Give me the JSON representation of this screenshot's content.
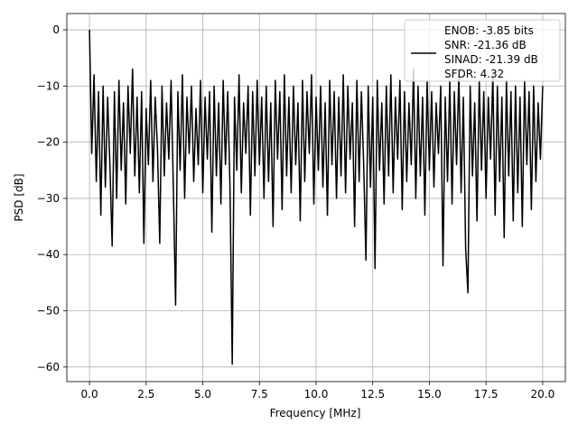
{
  "chart_data": {
    "type": "line",
    "xlabel": "Frequency [MHz]",
    "ylabel": "PSD [dB]",
    "xlim": [
      -1.0,
      21.0
    ],
    "ylim": [
      -62.6,
      2.9
    ],
    "xticks": [
      {
        "value": 0,
        "label": "0.0"
      },
      2.5,
      {
        "value": 5,
        "label": "5.0"
      },
      7.5,
      {
        "value": 10,
        "label": "10.0"
      },
      12.5,
      {
        "value": 15,
        "label": "15.0"
      },
      17.5,
      {
        "value": 20,
        "label": "20.0"
      }
    ],
    "yticks": [
      {
        "value": -60,
        "label": "−60"
      },
      {
        "value": -50,
        "label": "−50"
      },
      {
        "value": -40,
        "label": "−40"
      },
      {
        "value": -30,
        "label": "−30"
      },
      {
        "value": -20,
        "label": "−20"
      },
      {
        "value": -10,
        "label": "−10"
      },
      0
    ],
    "grid": true,
    "legend": "upper right",
    "x": [
      0,
      0.1,
      0.2,
      0.3,
      0.4,
      0.5,
      0.6,
      0.7,
      0.8,
      0.9,
      1,
      1.1,
      1.2,
      1.3,
      1.4,
      1.5,
      1.6,
      1.7,
      1.8,
      1.9,
      2,
      2.1,
      2.2,
      2.3,
      2.4,
      2.5,
      2.6,
      2.7,
      2.8,
      2.9,
      3,
      3.1,
      3.2,
      3.3,
      3.4,
      3.5,
      3.6,
      3.7,
      3.8,
      3.9,
      4,
      4.1,
      4.2,
      4.3,
      4.4,
      4.5,
      4.6,
      4.7,
      4.8,
      4.9,
      5,
      5.1,
      5.2,
      5.3,
      5.4,
      5.5,
      5.6,
      5.7,
      5.8,
      5.9,
      6,
      6.1,
      6.2,
      6.3,
      6.4,
      6.5,
      6.6,
      6.7,
      6.8,
      6.9,
      7,
      7.1,
      7.2,
      7.3,
      7.4,
      7.5,
      7.6,
      7.7,
      7.8,
      7.9,
      8,
      8.1,
      8.2,
      8.3,
      8.4,
      8.5,
      8.6,
      8.7,
      8.8,
      8.9,
      9,
      9.1,
      9.2,
      9.3,
      9.4,
      9.5,
      9.6,
      9.7,
      9.8,
      9.9,
      10,
      10.1,
      10.2,
      10.3,
      10.4,
      10.5,
      10.6,
      10.7,
      10.8,
      10.9,
      11,
      11.1,
      11.2,
      11.3,
      11.4,
      11.5,
      11.6,
      11.7,
      11.8,
      11.9,
      12,
      12.1,
      12.2,
      12.3,
      12.4,
      12.5,
      12.6,
      12.7,
      12.8,
      12.9,
      13,
      13.1,
      13.2,
      13.3,
      13.4,
      13.5,
      13.6,
      13.7,
      13.8,
      13.9,
      14,
      14.1,
      14.2,
      14.3,
      14.4,
      14.5,
      14.6,
      14.7,
      14.8,
      14.9,
      15,
      15.1,
      15.2,
      15.3,
      15.4,
      15.5,
      15.6,
      15.7,
      15.8,
      15.9,
      16,
      16.1,
      16.2,
      16.3,
      16.4,
      16.5,
      16.6,
      16.7,
      16.8,
      16.9,
      17,
      17.1,
      17.2,
      17.3,
      17.4,
      17.5,
      17.6,
      17.7,
      17.8,
      17.9,
      18,
      18.1,
      18.2,
      18.3,
      18.4,
      18.5,
      18.6,
      18.7,
      18.8,
      18.9,
      19,
      19.1,
      19.2,
      19.3,
      19.4,
      19.5,
      19.6,
      19.7,
      19.8,
      19.9,
      20
    ],
    "series": [
      {
        "name": "ENOB: -3.85 bits\nSNR: -21.36 dB\nSINAD: -21.39 dB\nSFDR: 4.32",
        "color": "#000000",
        "values": [
          0,
          -22,
          -8,
          -27,
          -11,
          -33,
          -10,
          -28,
          -12,
          -24,
          -38.5,
          -11,
          -30,
          -9,
          -25,
          -13,
          -31,
          -10,
          -22,
          -7,
          -26,
          -12,
          -29,
          -11,
          -38,
          -14,
          -24,
          -9,
          -27,
          -12,
          -21,
          -38,
          -10,
          -26,
          -13,
          -23,
          -9,
          -28,
          -49,
          -11,
          -25,
          -8,
          -30,
          -12,
          -22,
          -10,
          -27,
          -14,
          -24,
          -9,
          -29,
          -12,
          -23,
          -11,
          -36,
          -10,
          -26,
          -13,
          -31,
          -9,
          -24,
          -11,
          -28,
          -59.5,
          -12,
          -25,
          -8,
          -29,
          -13,
          -22,
          -10,
          -33,
          -11,
          -26,
          -9,
          -24,
          -12,
          -30,
          -10,
          -27,
          -13,
          -35,
          -9,
          -23,
          -11,
          -32,
          -8,
          -26,
          -12,
          -29,
          -10,
          -24,
          -13,
          -34,
          -9,
          -27,
          -11,
          -22,
          -8,
          -31,
          -12,
          -25,
          -10,
          -28,
          -13,
          -33,
          -9,
          -24,
          -11,
          -30,
          -12,
          -26,
          -8,
          -29,
          -10,
          -23,
          -13,
          -35,
          -9,
          -27,
          -11,
          -24,
          -41,
          -10,
          -28,
          -12,
          -42.5,
          -9,
          -25,
          -13,
          -31,
          -10,
          -26,
          -8,
          -29,
          -12,
          -23,
          -9,
          -32,
          -11,
          -27,
          -13,
          -24,
          -7,
          -30,
          -10,
          -26,
          -12,
          -33,
          -9,
          -25,
          -11,
          -28,
          -13,
          -22,
          -10,
          -42,
          -12,
          -27,
          -9,
          -31,
          -11,
          -24,
          -8,
          -29,
          -12,
          -39,
          -46.8,
          -10,
          -26,
          -13,
          -34,
          -9,
          -25,
          -11,
          -30,
          -12,
          -23,
          -8,
          -33,
          -10,
          -27,
          -12,
          -37,
          -9,
          -26,
          -11,
          -34,
          -10,
          -29,
          -12,
          -35,
          -9,
          -24,
          -11,
          -32,
          -10,
          -27,
          -13,
          -23,
          -10
        ]
      }
    ]
  }
}
